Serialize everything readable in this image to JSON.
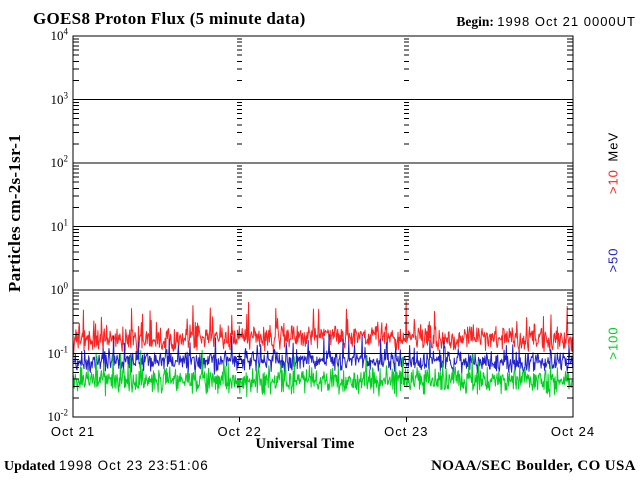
{
  "header": {
    "title": "GOES8 Proton Flux (5 minute data)",
    "begin_bold": "Begin:",
    "begin_value": "1998 Oct 21 0000UT"
  },
  "footer": {
    "updated_bold": "Updated",
    "updated_value": "1998 Oct 23 23:51:06",
    "credit": "NOAA/SEC Boulder, CO USA"
  },
  "axes": {
    "ylabel": "Particles cm-2s-1sr-1",
    "xlabel": "Universal Time",
    "y_ticks": [
      {
        "base": "10",
        "exp": "4"
      },
      {
        "base": "10",
        "exp": "3"
      },
      {
        "base": "10",
        "exp": "2"
      },
      {
        "base": "10",
        "exp": "1"
      },
      {
        "base": "10",
        "exp": "0"
      },
      {
        "base": "10",
        "exp": "-1"
      },
      {
        "base": "10",
        "exp": "-2"
      }
    ],
    "x_ticks": [
      "Oct 21",
      "Oct 22",
      "Oct 23",
      "Oct 24"
    ]
  },
  "legend": {
    "unit": "MeV",
    "items": [
      {
        "label": ">10",
        "color": "#ff2020"
      },
      {
        "label": ">50",
        "color": "#2222cc"
      },
      {
        "label": ">100",
        "color": "#00d020"
      }
    ]
  },
  "chart_data": {
    "type": "line",
    "title": "GOES8 Proton Flux (5 minute data)",
    "xlabel": "Universal Time",
    "ylabel": "Particles cm-2s-1sr-1",
    "x_ticks": [
      "Oct 21",
      "Oct 22",
      "Oct 23",
      "Oct 24"
    ],
    "x_range": "1998 Oct 21 0000UT to 1998 Oct 24 0000UT",
    "y_scale": "log",
    "ylim": [
      0.01,
      10000
    ],
    "grid": "solid horizontal lines at each decade; minor-tick dash columns at day boundaries",
    "legend_position": "right, rotated 90deg",
    "days": 3,
    "points_per_day": 288,
    "series": [
      {
        "name": ">10 MeV",
        "color": "#ff2020",
        "approx_mean": 0.16,
        "approx_min": 0.08,
        "approx_max": 0.7,
        "log_mean": -0.8,
        "log_sigma": 0.13,
        "hump": 0.06,
        "spike_prob": 0.08,
        "spike_amp": 0.45,
        "log_min": -1.1,
        "log_max": -0.16,
        "seed": 1234
      },
      {
        "name": ">50 MeV",
        "color": "#2222cc",
        "approx_mean": 0.072,
        "approx_min": 0.035,
        "approx_max": 0.2,
        "log_mean": -1.14,
        "log_sigma": 0.11,
        "hump": 0.02,
        "spike_prob": 0.07,
        "spike_amp": 0.35,
        "log_min": -1.46,
        "log_max": -0.7,
        "seed": 5678
      },
      {
        "name": ">100 MeV",
        "color": "#00d020",
        "approx_mean": 0.037,
        "approx_min": 0.015,
        "approx_max": 0.11,
        "log_mean": -1.43,
        "log_sigma": 0.13,
        "hump": 0.0,
        "spike_prob": 0.07,
        "spike_amp": 0.38,
        "log_min": -1.82,
        "log_max": -0.95,
        "seed": 9876
      }
    ]
  }
}
